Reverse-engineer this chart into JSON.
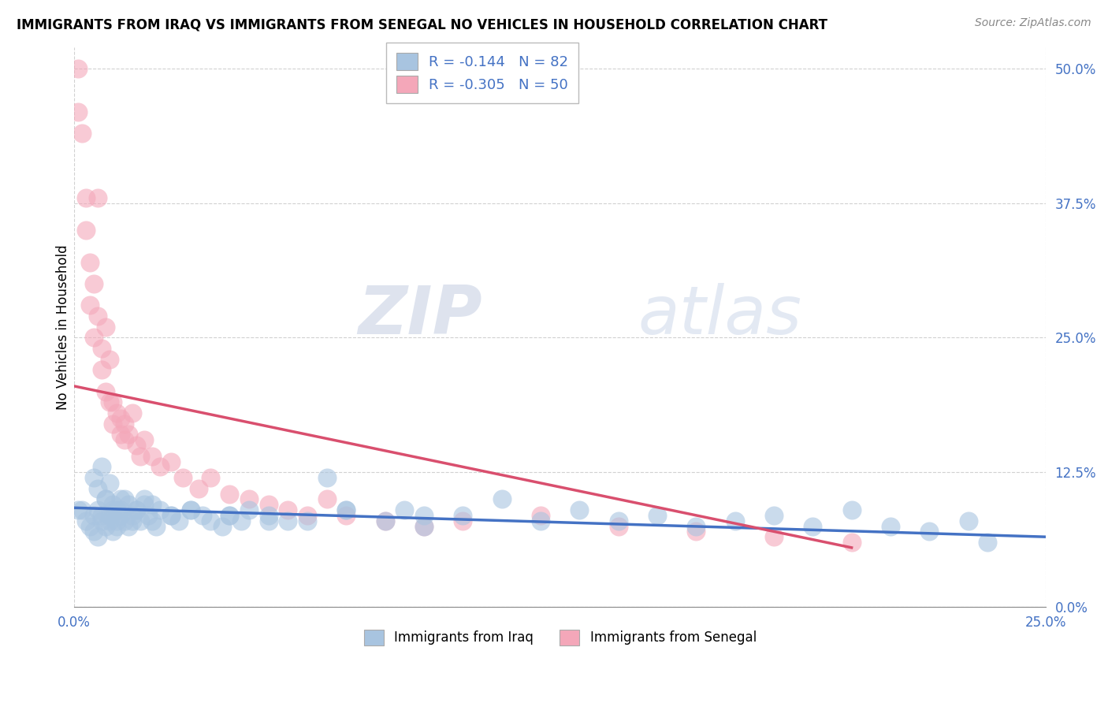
{
  "title": "IMMIGRANTS FROM IRAQ VS IMMIGRANTS FROM SENEGAL NO VEHICLES IN HOUSEHOLD CORRELATION CHART",
  "source": "Source: ZipAtlas.com",
  "ylabel_label": "No Vehicles in Household",
  "legend_iraq_label": "Immigrants from Iraq",
  "legend_senegal_label": "Immigrants from Senegal",
  "legend_iraq_R_val": "-0.144",
  "legend_iraq_N_val": "82",
  "legend_senegal_R_val": "-0.305",
  "legend_senegal_N_val": "50",
  "iraq_color": "#a8c4e0",
  "senegal_color": "#f4a7b9",
  "iraq_line_color": "#4472c4",
  "senegal_line_color": "#d94f6e",
  "watermark_zip": "ZIP",
  "watermark_atlas": "atlas",
  "xlim": [
    0.0,
    0.25
  ],
  "ylim": [
    0.0,
    0.52
  ],
  "iraq_scatter_x": [
    0.001,
    0.002,
    0.003,
    0.004,
    0.005,
    0.005,
    0.006,
    0.006,
    0.007,
    0.007,
    0.008,
    0.008,
    0.009,
    0.009,
    0.01,
    0.01,
    0.011,
    0.011,
    0.012,
    0.012,
    0.013,
    0.013,
    0.014,
    0.015,
    0.015,
    0.016,
    0.017,
    0.018,
    0.019,
    0.02,
    0.021,
    0.022,
    0.025,
    0.027,
    0.03,
    0.033,
    0.035,
    0.038,
    0.04,
    0.043,
    0.045,
    0.05,
    0.055,
    0.06,
    0.065,
    0.07,
    0.08,
    0.085,
    0.09,
    0.1,
    0.11,
    0.12,
    0.13,
    0.14,
    0.15,
    0.16,
    0.17,
    0.18,
    0.19,
    0.2,
    0.21,
    0.22,
    0.23,
    0.235,
    0.005,
    0.006,
    0.007,
    0.008,
    0.009,
    0.01,
    0.011,
    0.012,
    0.014,
    0.016,
    0.018,
    0.02,
    0.025,
    0.03,
    0.04,
    0.05,
    0.07,
    0.09
  ],
  "iraq_scatter_y": [
    0.09,
    0.09,
    0.08,
    0.075,
    0.085,
    0.07,
    0.065,
    0.09,
    0.08,
    0.085,
    0.075,
    0.1,
    0.08,
    0.085,
    0.09,
    0.07,
    0.08,
    0.075,
    0.085,
    0.09,
    0.08,
    0.1,
    0.075,
    0.08,
    0.085,
    0.09,
    0.08,
    0.095,
    0.085,
    0.08,
    0.075,
    0.09,
    0.085,
    0.08,
    0.09,
    0.085,
    0.08,
    0.075,
    0.085,
    0.08,
    0.09,
    0.085,
    0.08,
    0.08,
    0.12,
    0.09,
    0.08,
    0.09,
    0.075,
    0.085,
    0.1,
    0.08,
    0.09,
    0.08,
    0.085,
    0.075,
    0.08,
    0.085,
    0.075,
    0.09,
    0.075,
    0.07,
    0.08,
    0.06,
    0.12,
    0.11,
    0.13,
    0.1,
    0.115,
    0.095,
    0.09,
    0.1,
    0.095,
    0.09,
    0.1,
    0.095,
    0.085,
    0.09,
    0.085,
    0.08,
    0.09,
    0.085
  ],
  "senegal_scatter_x": [
    0.001,
    0.001,
    0.002,
    0.003,
    0.003,
    0.004,
    0.004,
    0.005,
    0.005,
    0.006,
    0.006,
    0.007,
    0.007,
    0.008,
    0.008,
    0.009,
    0.009,
    0.01,
    0.01,
    0.011,
    0.012,
    0.012,
    0.013,
    0.013,
    0.014,
    0.015,
    0.016,
    0.017,
    0.018,
    0.02,
    0.022,
    0.025,
    0.028,
    0.032,
    0.035,
    0.04,
    0.045,
    0.05,
    0.055,
    0.06,
    0.065,
    0.07,
    0.08,
    0.09,
    0.1,
    0.12,
    0.14,
    0.16,
    0.18,
    0.2
  ],
  "senegal_scatter_y": [
    0.5,
    0.46,
    0.44,
    0.35,
    0.38,
    0.32,
    0.28,
    0.3,
    0.25,
    0.38,
    0.27,
    0.24,
    0.22,
    0.26,
    0.2,
    0.23,
    0.19,
    0.19,
    0.17,
    0.18,
    0.175,
    0.16,
    0.155,
    0.17,
    0.16,
    0.18,
    0.15,
    0.14,
    0.155,
    0.14,
    0.13,
    0.135,
    0.12,
    0.11,
    0.12,
    0.105,
    0.1,
    0.095,
    0.09,
    0.085,
    0.1,
    0.085,
    0.08,
    0.075,
    0.08,
    0.085,
    0.075,
    0.07,
    0.065,
    0.06
  ],
  "iraq_trendline_x": [
    0.0,
    0.25
  ],
  "iraq_trendline_y": [
    0.092,
    0.065
  ],
  "senegal_trendline_x": [
    0.0,
    0.2
  ],
  "senegal_trendline_y": [
    0.205,
    0.055
  ]
}
